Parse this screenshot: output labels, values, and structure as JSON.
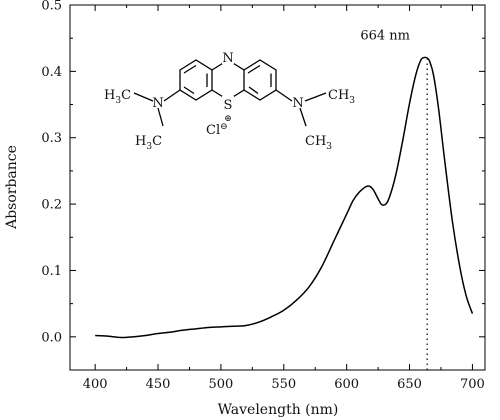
{
  "chart_data": {
    "type": "line",
    "title": "",
    "xlabel": "Wavelength (nm)",
    "ylabel": "Absorbance",
    "xlim": [
      380,
      710
    ],
    "ylim": [
      -0.05,
      0.5
    ],
    "xticks": [
      400,
      450,
      500,
      550,
      600,
      650,
      700
    ],
    "yticks": [
      0.0,
      0.1,
      0.2,
      0.3,
      0.4,
      0.5
    ],
    "xtick_labels": [
      "400",
      "450",
      "500",
      "550",
      "600",
      "650",
      "700"
    ],
    "ytick_labels": [
      "0.0",
      "0.1",
      "0.2",
      "0.3",
      "0.4",
      "0.5"
    ],
    "grid": false,
    "legend": "none",
    "line_color": "#000000",
    "series": [
      {
        "x": [
          400,
          410,
          420,
          430,
          440,
          450,
          460,
          470,
          480,
          490,
          500,
          510,
          520,
          530,
          540,
          550,
          560,
          570,
          580,
          590,
          600,
          605,
          610,
          615,
          618,
          621,
          625,
          628,
          632,
          636,
          640,
          645,
          650,
          655,
          659,
          662,
          664,
          666,
          669,
          673,
          678,
          684,
          690,
          695,
          700
        ],
        "y": [
          0.002,
          0.001,
          -0.001,
          0.0,
          0.002,
          0.005,
          0.007,
          0.01,
          0.012,
          0.014,
          0.015,
          0.016,
          0.017,
          0.022,
          0.03,
          0.04,
          0.055,
          0.075,
          0.105,
          0.145,
          0.185,
          0.205,
          0.218,
          0.226,
          0.227,
          0.222,
          0.208,
          0.199,
          0.202,
          0.222,
          0.252,
          0.3,
          0.352,
          0.395,
          0.417,
          0.421,
          0.42,
          0.415,
          0.395,
          0.345,
          0.265,
          0.175,
          0.105,
          0.062,
          0.035
        ]
      }
    ],
    "annotations": [
      {
        "text": "664 nm",
        "x": 664,
        "style": "dotted vertical line from axis to peak"
      }
    ],
    "inset": {
      "type": "chemical structure",
      "n_label": "N",
      "s_label": "S",
      "s_charge": "⊕",
      "cl_label": "Cl",
      "cl_charge": "⊖",
      "n_methyl_label": "N",
      "h3c_h": "H",
      "h3c_sub": "3",
      "h3c_c": "C",
      "ch3_ch": "CH",
      "ch3_sub": "3"
    }
  }
}
